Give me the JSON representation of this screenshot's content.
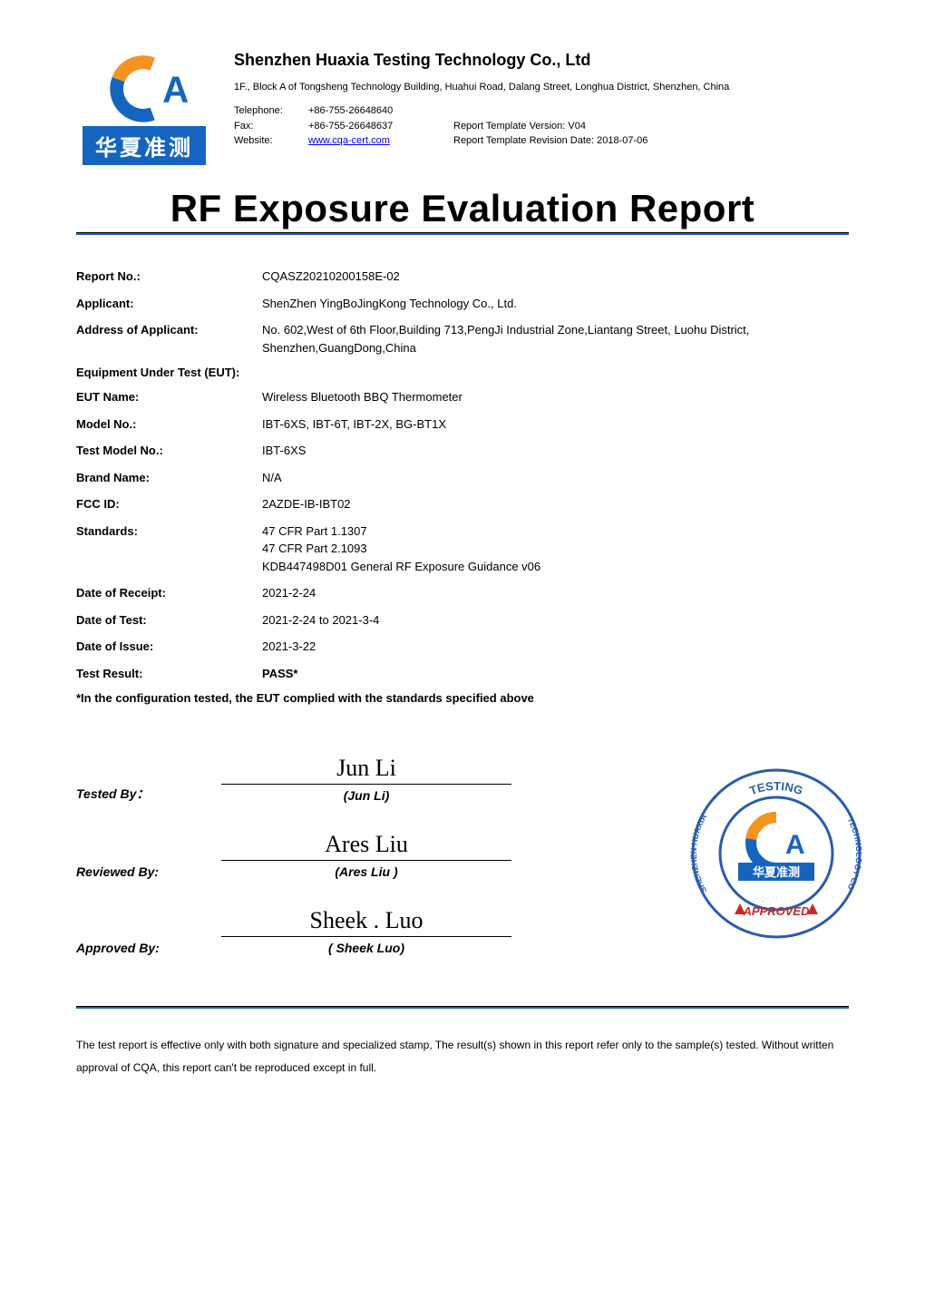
{
  "colors": {
    "accent": "#1565c0",
    "logo_orange": "#f7941d",
    "logo_blue": "#1565c0",
    "text": "#000000",
    "link": "#0000ee",
    "stamp_blue": "#2a5caa",
    "stamp_red": "#c62828"
  },
  "logo": {
    "cn_text": "华夏准测",
    "a_glyph": "A"
  },
  "header": {
    "company": "Shenzhen Huaxia Testing Technology Co., Ltd",
    "address": "1F., Block A of Tongsheng Technology Building, Huahui Road, Dalang Street, Longhua District, Shenzhen, China",
    "contacts": [
      {
        "label": "Telephone:",
        "value": "+86-755-26648640",
        "extra": ""
      },
      {
        "label": "Fax:",
        "value": "+86-755-26648637",
        "extra": "Report Template Version: V04"
      },
      {
        "label": "Website:",
        "value": "www.cqa-cert.com",
        "is_link": true,
        "extra": "Report Template Revision Date: 2018-07-06"
      }
    ]
  },
  "title": "RF Exposure Evaluation Report",
  "fields_top": [
    {
      "label": "Report No.:",
      "value": "CQASZ20210200158E-02"
    },
    {
      "label": "Applicant:",
      "value": "ShenZhen YingBoJingKong Technology Co., Ltd."
    },
    {
      "label": "Address of Applicant:",
      "value": "No. 602,West of 6th Floor,Building 713,PengJi Industrial Zone,Liantang Street, Luohu District, Shenzhen,GuangDong,China"
    }
  ],
  "eut_heading": "Equipment Under Test (EUT):",
  "fields_eut": [
    {
      "label": "EUT Name:",
      "value": "Wireless Bluetooth BBQ Thermometer"
    },
    {
      "label": "Model No.:",
      "value": "IBT-6XS, IBT-6T, IBT-2X, BG-BT1X"
    },
    {
      "label": "Test Model No.:",
      "value": "IBT-6XS"
    },
    {
      "label": "Brand Name:",
      "value": "N/A"
    },
    {
      "label": "FCC ID:",
      "value": "2AZDE-IB-IBT02"
    },
    {
      "label": "Standards:",
      "value": "47 CFR Part 1.1307\n47 CFR Part 2.1093\nKDB447498D01 General RF Exposure Guidance v06"
    },
    {
      "label": "Date of Receipt:",
      "value": "2021-2-24"
    },
    {
      "label": "Date of Test:",
      "value": "2021-2-24 to 2021-3-4"
    },
    {
      "label": "Date of Issue:",
      "value": "2021-3-22"
    },
    {
      "label": "Test Result:",
      "value": "PASS*",
      "bold": true
    }
  ],
  "config_note": "*In the configuration tested, the EUT complied with the standards specified above",
  "signatures": [
    {
      "role": "Tested By：",
      "script": "Jun Li",
      "name": "(Jun Li)"
    },
    {
      "role": "Reviewed By:",
      "script": "Ares Liu",
      "name": "(Ares Liu )"
    },
    {
      "role": "Approved By:",
      "script": "Sheek . Luo",
      "name": "( Sheek Luo)"
    }
  ],
  "stamp": {
    "outer_text_top": "TESTING",
    "outer_text_left": "SHENZHEN HUAXIA",
    "outer_text_right": "TECHNOLOGY CO",
    "approved": "APPROVED",
    "cn_text": "华夏准测"
  },
  "disclaimer": "The test report is effective only with both signature and specialized stamp, The result(s) shown in this report refer only to the sample(s) tested. Without written approval of CQA, this report can't be reproduced except in full."
}
